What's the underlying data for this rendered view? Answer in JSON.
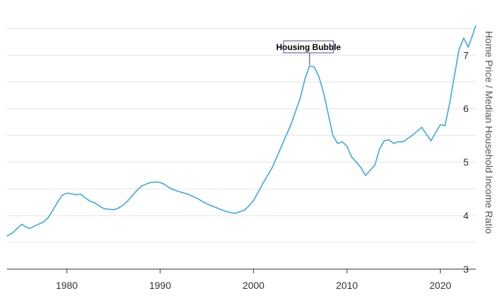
{
  "chart_data": {
    "type": "line",
    "title": "",
    "xlabel": "",
    "ylabel": "Home Price / Median Household Income Ratio",
    "xlim": [
      1973.6,
      2023.8
    ],
    "ylim": [
      3,
      7.9
    ],
    "x_ticks": [
      1980,
      1990,
      2000,
      2010,
      2020
    ],
    "x_tick_labels": [
      "1980",
      "1990",
      "2000",
      "2010",
      "2020"
    ],
    "y_ticks": [
      3,
      4,
      5,
      6,
      7
    ],
    "y_tick_labels": [
      "3",
      "4",
      "5",
      "6",
      "7"
    ],
    "y_axis_side": "right",
    "grid": "horizontal",
    "legend": "none",
    "series_color": "#3aa9e0",
    "series": [
      {
        "x": [
          1973.6,
          1974.2,
          1974.8,
          1975.2,
          1975.5,
          1976.0,
          1976.5,
          1977.0,
          1977.5,
          1978.0,
          1978.5,
          1979.0,
          1979.5,
          1980.0,
          1980.5,
          1981.0,
          1981.5,
          1982.0,
          1982.5,
          1983.0,
          1983.5,
          1984.0,
          1984.5,
          1985.0,
          1985.5,
          1986.0,
          1986.5,
          1987.0,
          1987.5,
          1988.0,
          1988.5,
          1989.0,
          1989.5,
          1990.0,
          1990.5,
          1991.0,
          1991.5,
          1992.0,
          1993.0,
          1994.0,
          1995.0,
          1996.0,
          1997.0,
          1998.0,
          1999.0,
          1999.5,
          2000.0,
          2001.0,
          2002.0,
          2003.0,
          2004.0,
          2005.0,
          2005.5,
          2006.0,
          2006.5,
          2007.0,
          2007.5,
          2008.0,
          2008.5,
          2009.0,
          2009.5,
          2010.0,
          2010.5,
          2011.0,
          2011.5,
          2012.0,
          2012.5,
          2013.0,
          2013.5,
          2014.0,
          2014.5,
          2015.0,
          2015.5,
          2016.0,
          2017.0,
          2018.0,
          2019.0,
          2019.5,
          2020.0,
          2020.5,
          2021.0,
          2021.5,
          2022.0,
          2022.5,
          2023.0,
          2023.8
        ],
        "y": [
          3.62,
          3.68,
          3.78,
          3.84,
          3.8,
          3.76,
          3.8,
          3.84,
          3.88,
          3.96,
          4.1,
          4.25,
          4.38,
          4.42,
          4.41,
          4.39,
          4.4,
          4.33,
          4.27,
          4.24,
          4.18,
          4.13,
          4.12,
          4.11,
          4.14,
          4.19,
          4.27,
          4.37,
          4.47,
          4.55,
          4.59,
          4.62,
          4.63,
          4.62,
          4.58,
          4.52,
          4.48,
          4.45,
          4.4,
          4.32,
          4.22,
          4.15,
          4.08,
          4.04,
          4.1,
          4.18,
          4.28,
          4.6,
          4.9,
          5.3,
          5.7,
          6.2,
          6.55,
          6.8,
          6.78,
          6.6,
          6.3,
          5.9,
          5.5,
          5.35,
          5.38,
          5.3,
          5.1,
          5.0,
          4.9,
          4.75,
          4.85,
          4.95,
          5.25,
          5.4,
          5.42,
          5.35,
          5.38,
          5.38,
          5.5,
          5.65,
          5.4,
          5.55,
          5.7,
          5.68,
          6.1,
          6.6,
          7.1,
          7.32,
          7.15,
          7.55
        ]
      }
    ],
    "annotations": [
      {
        "text": "Housing Bubble",
        "x": 2006.0,
        "y": 6.82
      }
    ]
  }
}
